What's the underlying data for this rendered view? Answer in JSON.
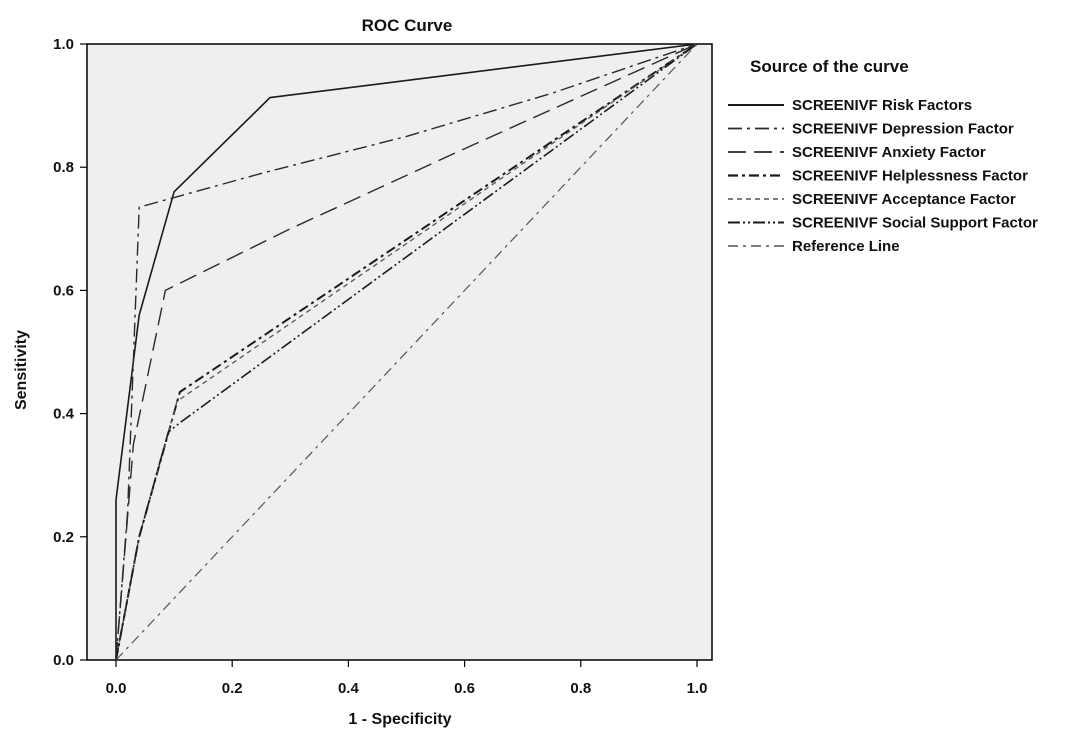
{
  "chart_data": {
    "type": "line",
    "title": "ROC Curve",
    "xlabel": "1 - Specificity",
    "ylabel": "Sensitivity",
    "xlim": [
      0,
      1
    ],
    "ylim": [
      0,
      1
    ],
    "x_ticks": [
      "0.0",
      "0.2",
      "0.4",
      "0.6",
      "0.8",
      "1.0"
    ],
    "y_ticks": [
      "0.0",
      "0.2",
      "0.4",
      "0.6",
      "0.8",
      "1.0"
    ],
    "grid": false,
    "legend_title": "Source of the curve",
    "legend_position": "right",
    "series": [
      {
        "name": "SCREENIVF Risk Factors",
        "style": "solid",
        "color": "#1a1a1a",
        "x": [
          0,
          0.0,
          0.04,
          0.1,
          0.265,
          1.0
        ],
        "y": [
          0,
          0.26,
          0.56,
          0.76,
          0.913,
          1.0
        ]
      },
      {
        "name": "SCREENIVF Depression Factor",
        "style": "dash-dot",
        "color": "#2a2a2a",
        "x": [
          0,
          0.02,
          0.04,
          0.25,
          0.5,
          0.75,
          1.0
        ],
        "y": [
          0,
          0.24,
          0.735,
          0.79,
          0.85,
          0.92,
          1.0
        ]
      },
      {
        "name": "SCREENIVF Anxiety Factor",
        "style": "long-dash",
        "color": "#2a2a2a",
        "x": [
          0,
          0.03,
          0.085,
          0.3,
          0.6,
          1.0
        ],
        "y": [
          0,
          0.35,
          0.6,
          0.7,
          0.83,
          1.0
        ]
      },
      {
        "name": "SCREENIVF Helplessness Factor",
        "style": "dash-dot-bold",
        "color": "#1a1a1a",
        "x": [
          0,
          0.04,
          0.11,
          1.0
        ],
        "y": [
          0,
          0.2,
          0.435,
          1.0
        ]
      },
      {
        "name": "SCREENIVF Acceptance Factor",
        "style": "short-dash",
        "color": "#555555",
        "x": [
          0,
          0.04,
          0.105,
          1.0
        ],
        "y": [
          0,
          0.2,
          0.42,
          1.0
        ]
      },
      {
        "name": "SCREENIVF Social Support Factor",
        "style": "dash-dot-dot",
        "color": "#1a1a1a",
        "x": [
          0,
          0.04,
          0.09,
          0.11,
          1.0
        ],
        "y": [
          0,
          0.2,
          0.37,
          0.385,
          1.0
        ]
      },
      {
        "name": "Reference Line",
        "style": "dash-dot-light",
        "color": "#555555",
        "x": [
          0,
          1.0
        ],
        "y": [
          0,
          1.0
        ]
      }
    ]
  }
}
